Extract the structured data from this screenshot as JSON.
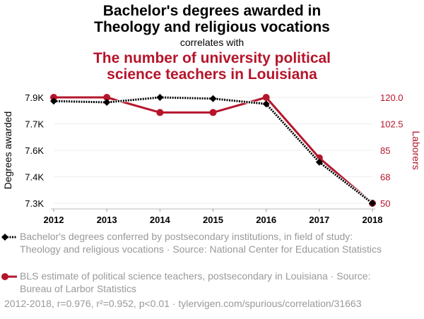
{
  "title_line1": "Bachelor's degrees awarded in",
  "title_line2": "Theology and religious vocations",
  "subtitle": "correlates with",
  "title2_line1": "The number of university political",
  "title2_line2": "science teachers in Louisiana",
  "chart_data": {
    "type": "line",
    "x": [
      2012,
      2013,
      2014,
      2015,
      2016,
      2017,
      2018
    ],
    "x_tick_labels": [
      "2012",
      "2013",
      "2014",
      "2015",
      "2016",
      "2017",
      "2018"
    ],
    "y_left": {
      "label": "Degrees awarded",
      "range": [
        7300,
        7900
      ],
      "tick_values": [
        7300,
        7450,
        7600,
        7750,
        7900
      ],
      "tick_labels": [
        "7.3K",
        "7.4K",
        "7.6K",
        "7.7K",
        "7.9K"
      ]
    },
    "y_right": {
      "label": "Laborers",
      "range": [
        50,
        120
      ],
      "tick_values": [
        50,
        67.5,
        85,
        102.5,
        120
      ],
      "tick_labels": [
        "50",
        "68",
        "85",
        "102.5",
        "120.0"
      ]
    },
    "series": [
      {
        "name": "Bachelor's degrees conferred by postsecondary institutions, in field of study: Theology and religious vocations · Source: National Center for Education Statistics",
        "axis": "left",
        "color": "#000000",
        "values": [
          7879,
          7872,
          7900,
          7893,
          7863,
          7533,
          7300
        ]
      },
      {
        "name": "BLS estimate of political science teachers, postsecondary in Louisiana · Source: Bureau of Larbor Statistics",
        "axis": "right",
        "color": "#b5152b",
        "values": [
          120,
          120,
          110,
          110,
          120,
          80,
          50
        ]
      }
    ],
    "grid": true,
    "legend_position": "bottom"
  },
  "footer": "2012-2018, r=0.976, r²=0.952, p<0.01 · tylervigen.com/spurious/correlation/31663"
}
